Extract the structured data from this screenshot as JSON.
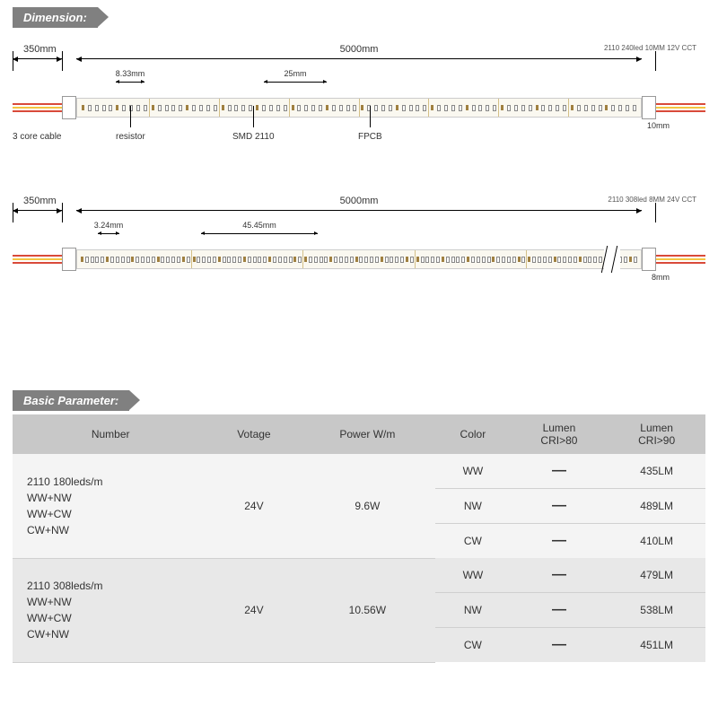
{
  "sections": {
    "dimension_title": "Dimension:",
    "basic_param_title": "Basic Parameter:"
  },
  "colors": {
    "header_bg": "#808080",
    "header_text": "#ffffff",
    "cable_red": "#d94a3a",
    "cable_yellow": "#f4c542",
    "strip_bg": "#faf8f0",
    "table_header_bg": "#c8c8c8",
    "row_dark": "#e8e8e8",
    "row_light": "#f4f4f4"
  },
  "strip1": {
    "product": "2110 240led 10MM 12V CCT",
    "cable_len": "350mm",
    "strip_len": "5000mm",
    "pitch": "8.33mm",
    "cut": "25mm",
    "width": "10mm",
    "callouts": {
      "cable": "3 core cable",
      "resistor": "resistor",
      "smd": "SMD 2110",
      "fpcb": "FPCB"
    }
  },
  "strip2": {
    "product": "2110 308led 8MM 24V CCT",
    "cable_len": "350mm",
    "strip_len": "5000mm",
    "pitch": "3.24mm",
    "cut": "45.45mm",
    "width": "8mm"
  },
  "table": {
    "headers": {
      "number": "Number",
      "voltage": "Votage",
      "power": "Power W/m",
      "color": "Color",
      "lumen80": "Lumen\nCRI>80",
      "lumen90": "Lumen\nCRI>90"
    },
    "groups": [
      {
        "number": "2110 180leds/m\nWW+NW\nWW+CW\nCW+NW",
        "voltage": "24V",
        "power": "9.6W",
        "rows": [
          {
            "color": "WW",
            "l80": "—",
            "l90": "435LM"
          },
          {
            "color": "NW",
            "l80": "—",
            "l90": "489LM"
          },
          {
            "color": "CW",
            "l80": "—",
            "l90": "410LM"
          }
        ],
        "shade": "light"
      },
      {
        "number": "2110 308leds/m\nWW+NW\nWW+CW\nCW+NW",
        "voltage": "24V",
        "power": "10.56W",
        "rows": [
          {
            "color": "WW",
            "l80": "—",
            "l90": "479LM"
          },
          {
            "color": "NW",
            "l80": "—",
            "l90": "538LM"
          },
          {
            "color": "CW",
            "l80": "—",
            "l90": "451LM"
          }
        ],
        "shade": "dark"
      }
    ]
  }
}
